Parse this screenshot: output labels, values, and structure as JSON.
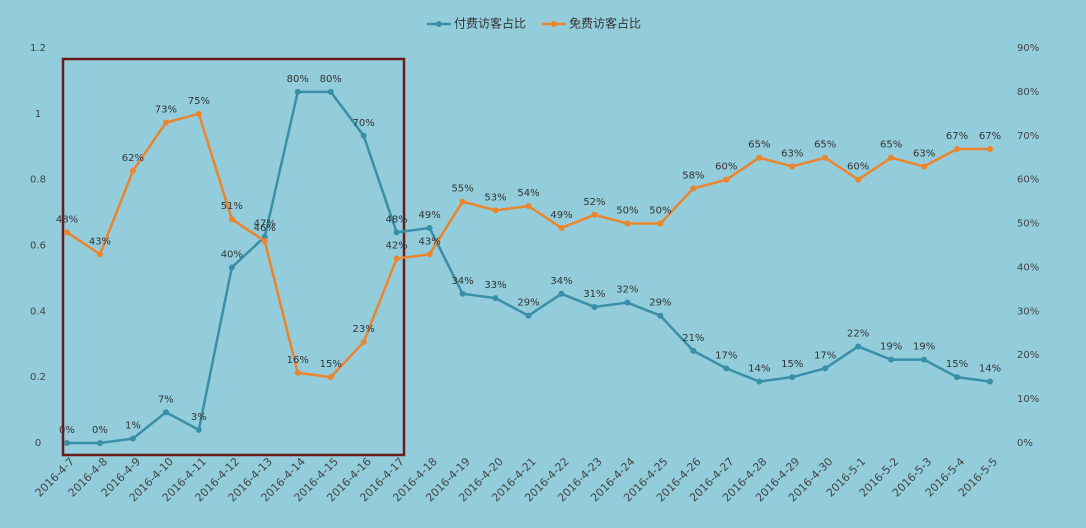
{
  "chart_data": {
    "type": "line",
    "categories": [
      "2016-4-7",
      "2016-4-8",
      "2016-4-9",
      "2016-4-10",
      "2016-4-11",
      "2016-4-12",
      "2016-4-13",
      "2016-4-14",
      "2016-4-15",
      "2016-4-16",
      "2016-4-17",
      "2016-4-18",
      "2016-4-19",
      "2016-4-20",
      "2016-4-21",
      "2016-4-22",
      "2016-4-23",
      "2016-4-24",
      "2016-4-25",
      "2016-4-26",
      "2016-4-27",
      "2016-4-28",
      "2016-4-29",
      "2016-4-30",
      "2016-5-1",
      "2016-5-2",
      "2016-5-3",
      "2016-5-4",
      "2016-5-5"
    ],
    "series": [
      {
        "name": "付费访客占比",
        "color": "#3a8fa8",
        "axis": "y2",
        "values": [
          0,
          0,
          1,
          7,
          3,
          40,
          47,
          80,
          80,
          70,
          48,
          49,
          34,
          33,
          29,
          34,
          31,
          32,
          29,
          21,
          17,
          14,
          15,
          17,
          22,
          19,
          19,
          15,
          14
        ],
        "value_labels": [
          "0%",
          "0%",
          "1%",
          "7%",
          "3%",
          "40%",
          "47%",
          "80%",
          "80%",
          "70%",
          "48%",
          "49%",
          "34%",
          "33%",
          "29%",
          "34%",
          "31%",
          "32%",
          "29%",
          "21%",
          "17%",
          "14%",
          "15%",
          "17%",
          "22%",
          "19%",
          "19%",
          "15%",
          "14%"
        ]
      },
      {
        "name": "免费访客占比",
        "color": "#ec842c",
        "axis": "y2",
        "values": [
          48,
          43,
          62,
          73,
          75,
          51,
          46,
          16,
          15,
          23,
          42,
          43,
          55,
          53,
          54,
          49,
          52,
          50,
          50,
          58,
          60,
          65,
          63,
          65,
          60,
          65,
          63,
          67,
          67
        ],
        "value_labels": [
          "48%",
          "43%",
          "62%",
          "73%",
          "75%",
          "51%",
          "46%",
          "16%",
          "15%",
          "23%",
          "42%",
          "43%",
          "55%",
          "53%",
          "54%",
          "49%",
          "52%",
          "50%",
          "50%",
          "58%",
          "60%",
          "65%",
          "63%",
          "65%",
          "60%",
          "65%",
          "63%",
          "67%",
          "67%"
        ]
      }
    ],
    "ylim": [
      0,
      1.2
    ],
    "yticks": [
      0,
      0.2,
      0.4,
      0.6,
      0.8,
      1,
      1.2
    ],
    "y2lim": [
      0,
      90
    ],
    "y2ticks": [
      {
        "value": 0,
        "label": "0%"
      },
      {
        "value": 10,
        "label": "10%"
      },
      {
        "value": 20,
        "label": "20%"
      },
      {
        "value": 30,
        "label": "30%"
      },
      {
        "value": 40,
        "label": "40%"
      },
      {
        "value": 50,
        "label": "50%"
      },
      {
        "value": 60,
        "label": "60%"
      },
      {
        "value": 70,
        "label": "70%"
      },
      {
        "value": 80,
        "label": "80%"
      },
      {
        "value": 90,
        "label": "90%"
      }
    ],
    "grid": false
  }
}
